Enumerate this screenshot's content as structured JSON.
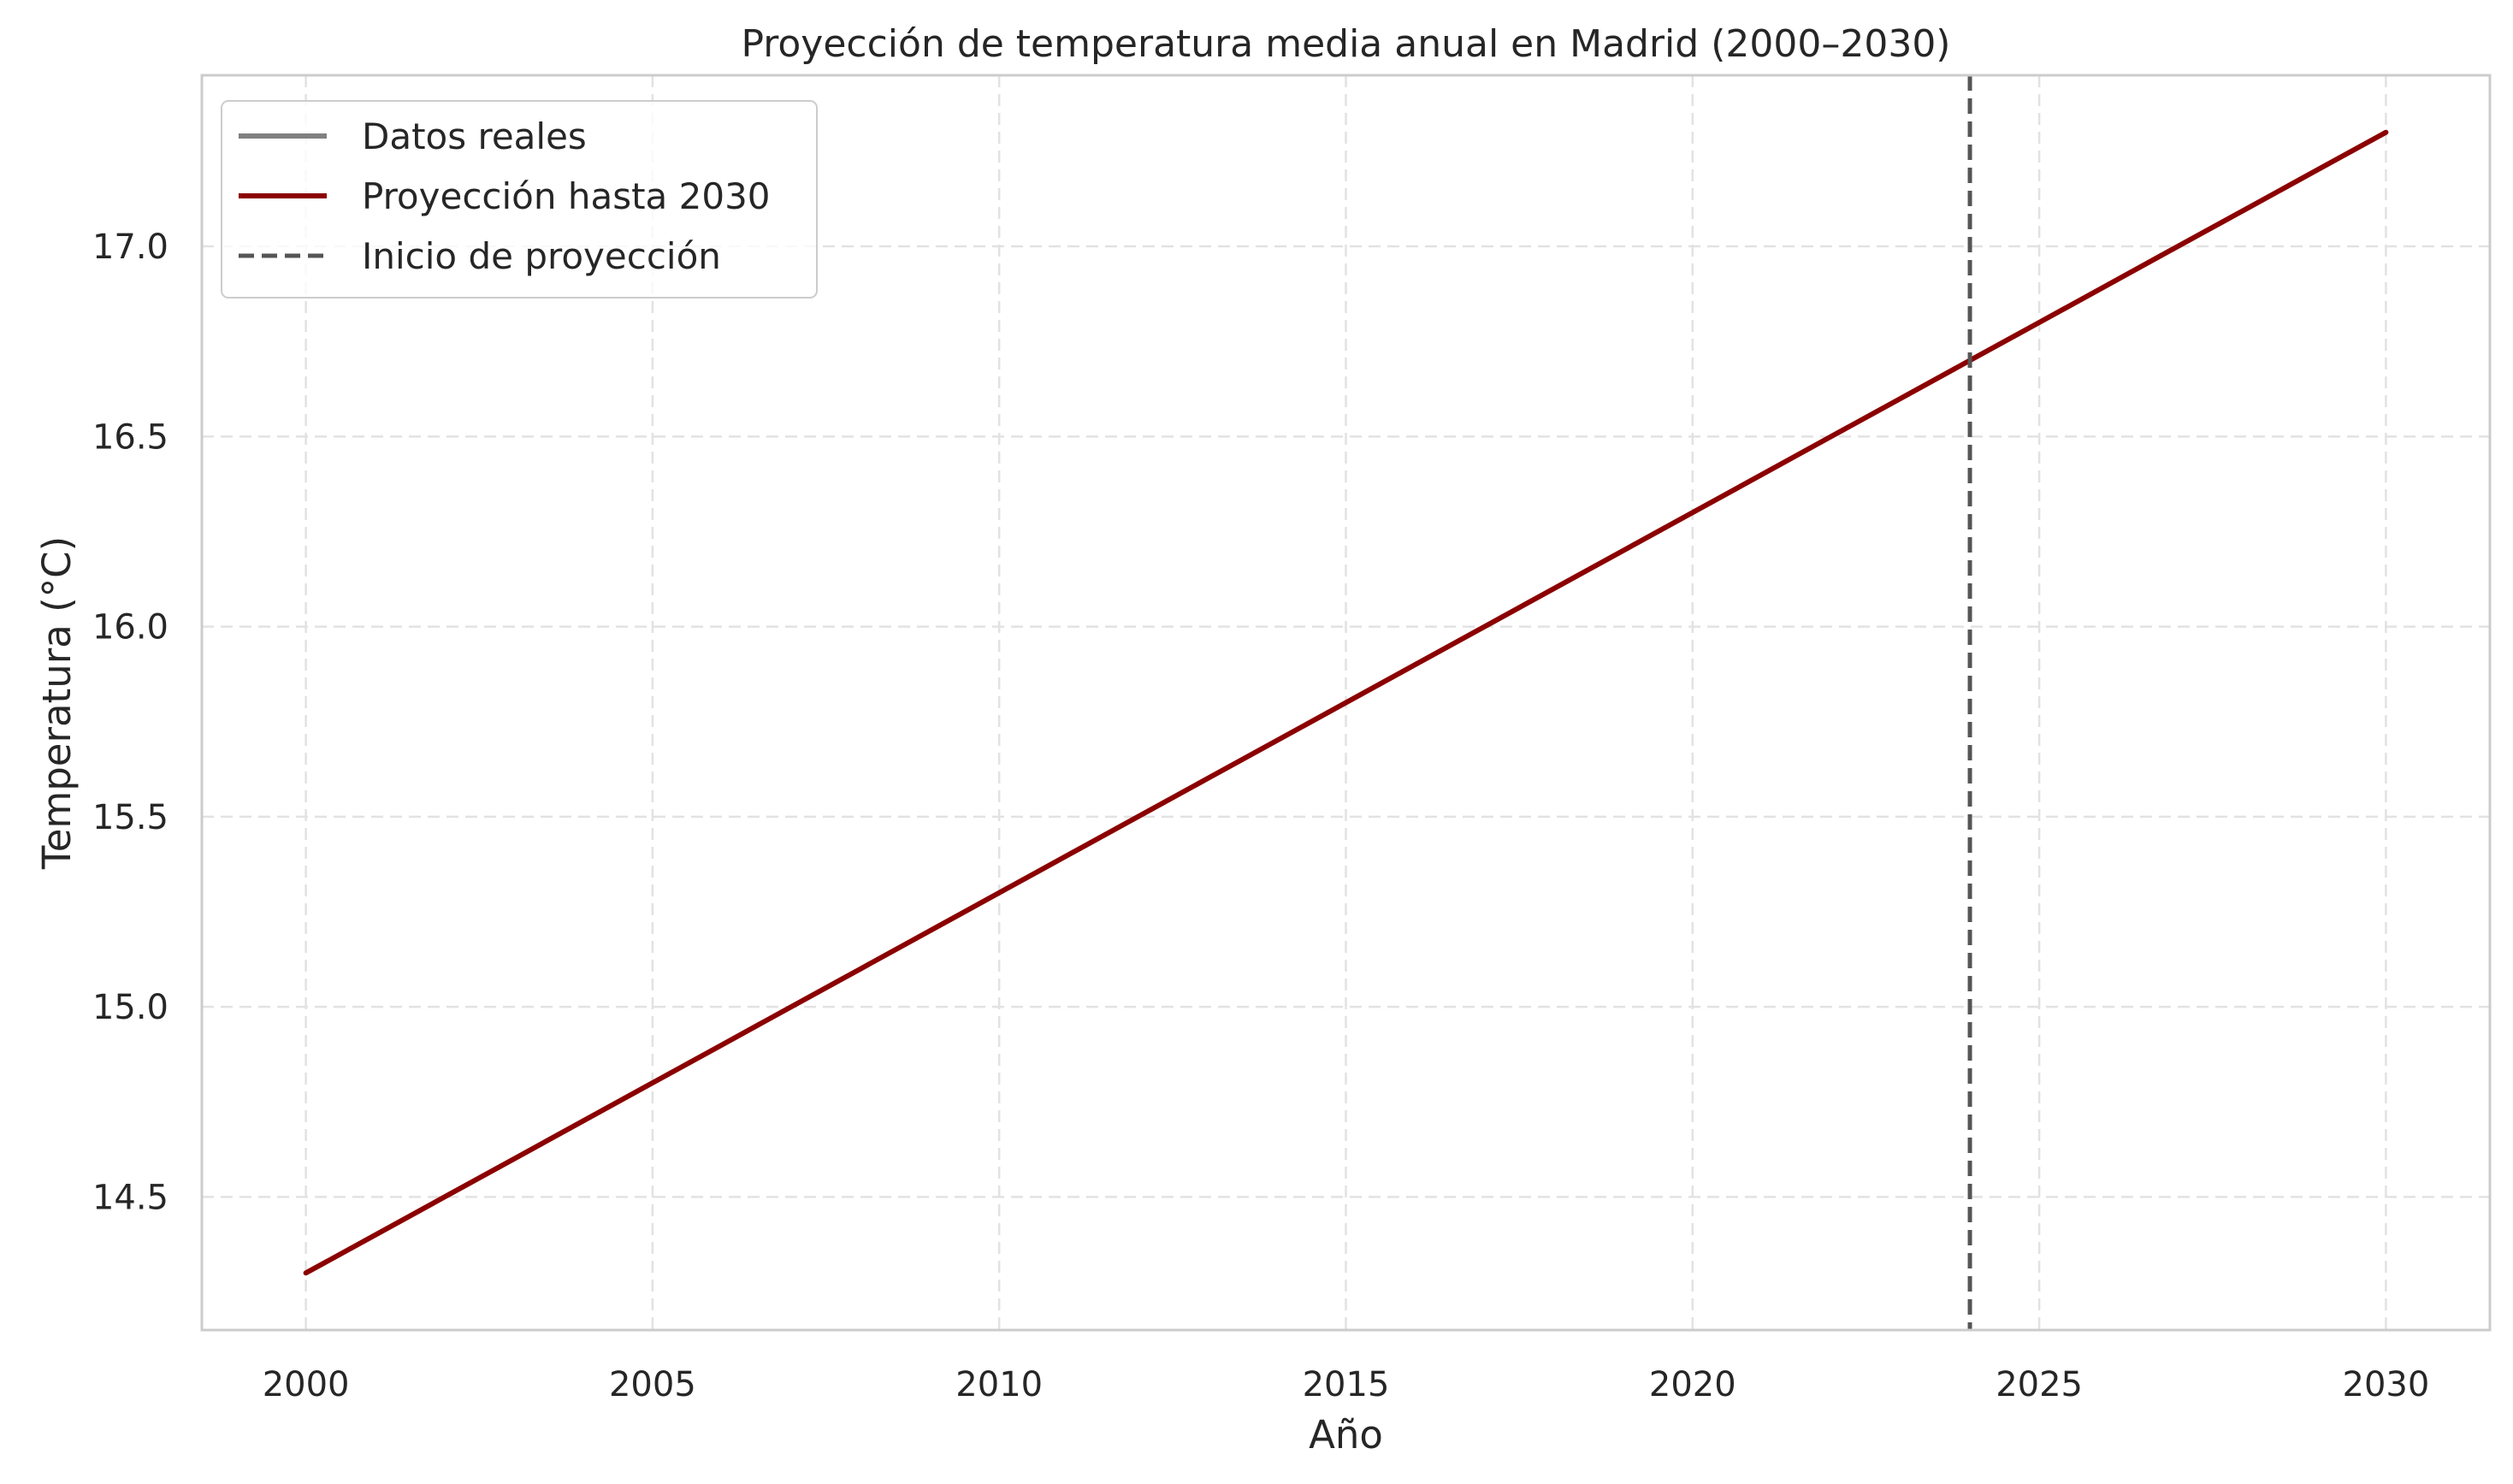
{
  "chart_data": {
    "type": "line",
    "title": "Proyección de temperatura media anual en Madrid (2000–2030)",
    "xlabel": "Año",
    "ylabel": "Temperatura (°C)",
    "xlim": [
      1998.5,
      2031.5
    ],
    "ylim": [
      14.15,
      17.45
    ],
    "xticks": [
      2000,
      2005,
      2010,
      2015,
      2020,
      2025,
      2030
    ],
    "yticks": [
      14.5,
      15.0,
      15.5,
      16.0,
      16.5,
      17.0
    ],
    "ytick_labels": [
      "14.5",
      "15.0",
      "15.5",
      "16.0",
      "16.5",
      "17.0"
    ],
    "grid": true,
    "legend_position": "top-left",
    "series": [
      {
        "name": "Datos reales",
        "color": "#808080",
        "style": "solid",
        "x": [],
        "y": []
      },
      {
        "name": "Proyección hasta 2030",
        "color": "#8b0000",
        "style": "solid",
        "x": [
          2000,
          2001,
          2002,
          2003,
          2004,
          2005,
          2006,
          2007,
          2008,
          2009,
          2010,
          2011,
          2012,
          2013,
          2014,
          2015,
          2016,
          2017,
          2018,
          2019,
          2020,
          2021,
          2022,
          2023,
          2024,
          2025,
          2026,
          2027,
          2028,
          2029,
          2030
        ],
        "y": [
          14.3,
          14.4,
          14.5,
          14.6,
          14.7,
          14.8,
          14.9,
          15.0,
          15.1,
          15.2,
          15.3,
          15.4,
          15.5,
          15.6,
          15.7,
          15.8,
          15.9,
          16.0,
          16.1,
          16.2,
          16.3,
          16.4,
          16.5,
          16.6,
          16.7,
          16.8,
          16.9,
          17.0,
          17.1,
          17.2,
          17.3
        ]
      }
    ],
    "vlines": [
      {
        "name": "Inicio de proyección",
        "x": 2024,
        "color": "#555555",
        "style": "dashed"
      }
    ],
    "legend": [
      "Datos reales",
      "Proyección hasta 2030",
      "Inicio de proyección"
    ]
  }
}
